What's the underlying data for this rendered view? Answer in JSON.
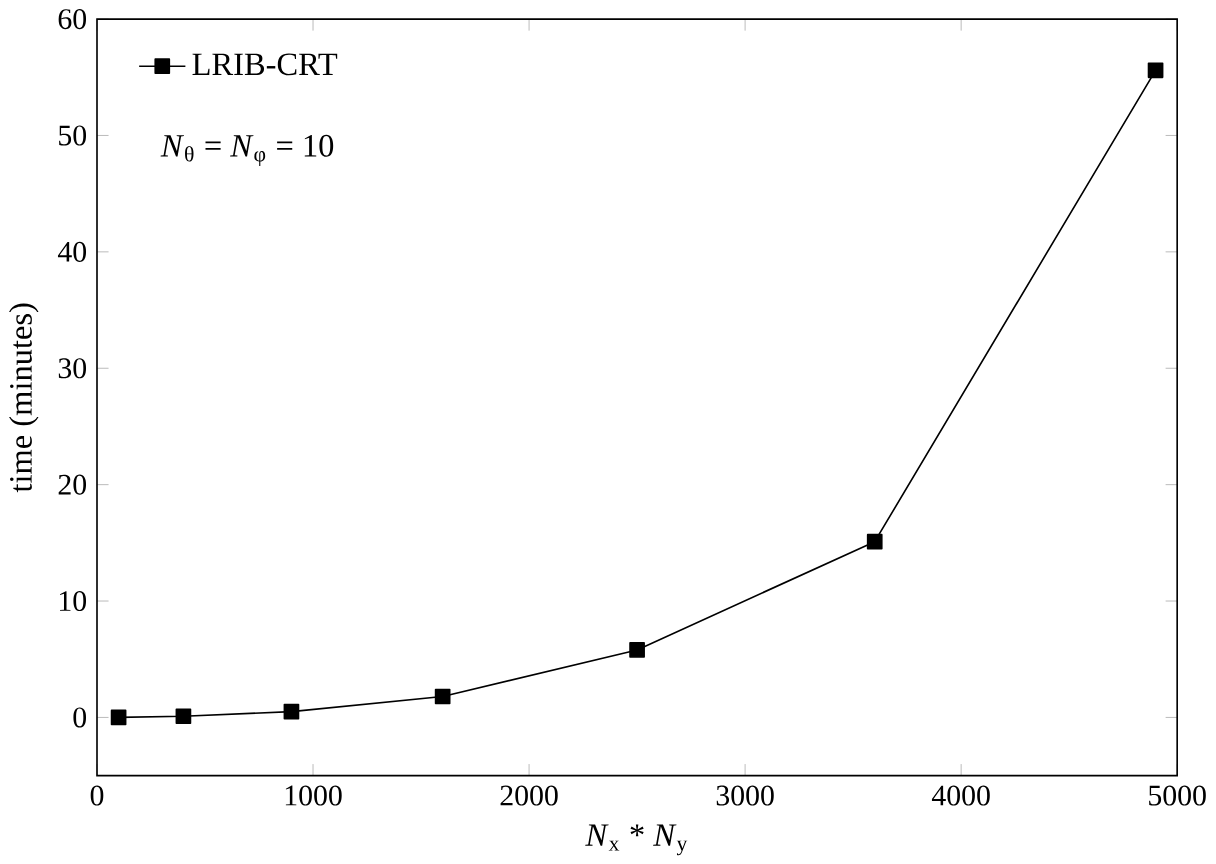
{
  "chart_data": {
    "type": "line",
    "xlabel": "*N*$_{x}$ * *N*$_{y}$",
    "ylabel": "time (minutes)",
    "x": [
      100,
      400,
      900,
      1600,
      2500,
      3600,
      4900
    ],
    "series": [
      {
        "name": "LRIB-CRT",
        "color": "#000000",
        "values": [
          0.0,
          0.1,
          0.5,
          1.8,
          5.8,
          15.1,
          55.6
        ]
      }
    ],
    "xlim": [
      0,
      5000
    ],
    "xticks": [
      0,
      1000,
      2000,
      3000,
      4000,
      5000
    ],
    "ylim": [
      -5,
      60
    ],
    "yticks": [
      0,
      10,
      20,
      30,
      40,
      50,
      60
    ],
    "annotations": [
      "*N*$_{θ}$ = *N*$_{φ}$ = 10"
    ],
    "legend": "top left",
    "marker": "square",
    "line_style": "solid",
    "grid": false
  }
}
